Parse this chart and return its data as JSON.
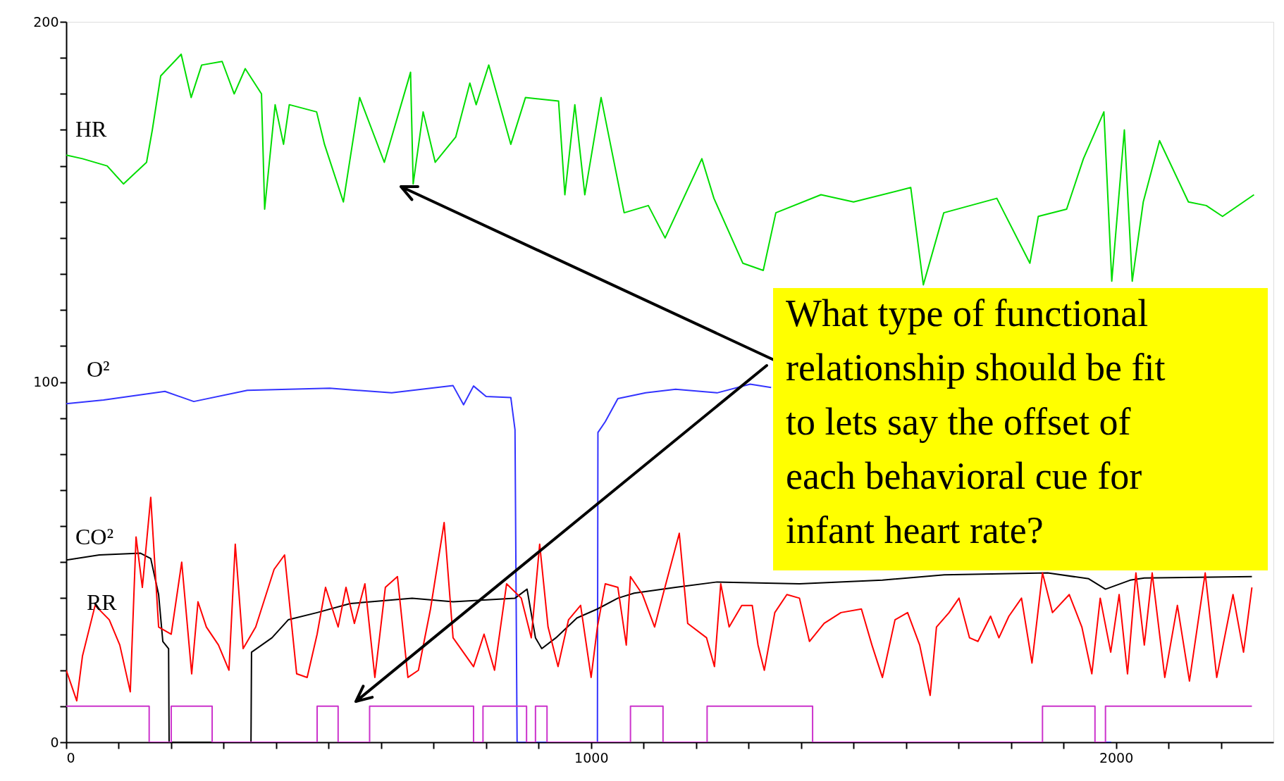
{
  "chart_data": {
    "type": "line",
    "xlim": [
      0,
      2300
    ],
    "ylim": [
      0,
      200
    ],
    "xticks": [
      0,
      {
        "value": 100,
        "label": null
      },
      {
        "value": 200,
        "label": null
      },
      {
        "value": 300,
        "label": null
      },
      {
        "value": 400,
        "label": null
      },
      {
        "value": 500,
        "label": null
      },
      {
        "value": 600,
        "label": null
      },
      {
        "value": 700,
        "label": null
      },
      {
        "value": 800,
        "label": null
      },
      {
        "value": 900,
        "label": null
      },
      1000,
      {
        "value": 1100,
        "label": null
      },
      {
        "value": 1200,
        "label": null
      },
      {
        "value": 1300,
        "label": null
      },
      {
        "value": 1400,
        "label": null
      },
      {
        "value": 1500,
        "label": null
      },
      {
        "value": 1600,
        "label": null
      },
      {
        "value": 1700,
        "label": null
      },
      {
        "value": 1800,
        "label": null
      },
      {
        "value": 1900,
        "label": null
      },
      2000,
      {
        "value": 2100,
        "label": null
      },
      {
        "value": 2200,
        "label": null
      }
    ],
    "yticks": [
      0,
      {
        "value": 10,
        "label": null
      },
      {
        "value": 20,
        "label": null
      },
      {
        "value": 30,
        "label": null
      },
      {
        "value": 40,
        "label": null
      },
      {
        "value": 50,
        "label": null
      },
      {
        "value": 60,
        "label": null
      },
      {
        "value": 70,
        "label": null
      },
      {
        "value": 80,
        "label": null
      },
      {
        "value": 90,
        "label": null
      },
      100,
      {
        "value": 110,
        "label": null
      },
      {
        "value": 120,
        "label": null
      },
      {
        "value": 130,
        "label": null
      },
      {
        "value": 140,
        "label": null
      },
      {
        "value": 150,
        "label": null
      },
      {
        "value": 160,
        "label": null
      },
      {
        "value": 170,
        "label": null
      },
      {
        "value": 180,
        "label": null
      },
      {
        "value": 190,
        "label": null
      },
      200
    ],
    "grid": false,
    "annotations": [
      "What type of functional relationship should be fit to lets say the offset of each behavioral cue for infant heart rate?"
    ],
    "series": [
      {
        "name": "HR",
        "color": "#00dd00",
        "x": [
          0,
          31,
          78,
          109,
          153,
          164,
          180,
          219,
          238,
          258,
          297,
          320,
          341,
          372,
          378,
          398,
          414,
          425,
          477,
          492,
          528,
          559,
          606,
          656,
          661,
          680,
          703,
          742,
          769,
          781,
          805,
          847,
          875,
          938,
          950,
          969,
          988,
          1019,
          1063,
          1109,
          1141,
          1211,
          1234,
          1289,
          1328,
          1352,
          1438,
          1500,
          1609,
          1633,
          1672,
          1773,
          1836,
          1852,
          1906,
          1938,
          1977,
          1992,
          2016,
          2031,
          2052,
          2083,
          2138,
          2172,
          2203,
          2263
        ],
        "values": [
          163,
          162,
          160,
          155,
          161,
          170,
          185,
          191,
          179,
          188,
          189,
          180,
          187,
          180,
          148,
          177,
          166,
          177,
          175,
          166,
          150,
          179,
          161,
          186,
          155,
          175,
          161,
          168,
          183,
          177,
          188,
          166,
          179,
          178,
          152,
          177,
          152,
          179,
          147,
          149,
          140,
          162,
          151,
          133,
          131,
          147,
          152,
          150,
          154,
          127,
          147,
          151,
          133,
          146,
          148,
          162,
          175,
          128,
          170,
          128,
          150,
          167,
          150,
          149,
          146,
          152
        ]
      },
      {
        "name": "O²",
        "color": "#3333ff",
        "x": [
          0,
          71,
          188,
          243,
          345,
          502,
          620,
          737,
          757,
          776,
          800,
          847,
          855,
          859,
          1012,
          1013,
          1027,
          1051,
          1104,
          1161,
          1240,
          1303,
          1343,
          1400,
          1965,
          1966,
          1991
        ],
        "values": [
          94,
          95,
          97.4,
          94.6,
          97.7,
          98.3,
          97,
          99,
          93.7,
          98.9,
          96,
          95.7,
          86.8,
          0,
          0,
          86,
          89,
          95.4,
          97,
          98,
          97,
          99.4,
          98.5,
          null,
          null,
          0,
          0
        ]
      },
      {
        "name": "CO²",
        "color": "#000000",
        "x": [
          0,
          63,
          141,
          161,
          176,
          184,
          195,
          196,
          352,
          353,
          392,
          423,
          478,
          541,
          580,
          659,
          737,
          855,
          878,
          894,
          906,
          933,
          973,
          1012,
          1051,
          1082,
          1161,
          1240,
          1397,
          1555,
          1673,
          1870,
          1948,
          1980,
          2027,
          2054,
          2259
        ],
        "values": [
          50.6,
          52,
          52.5,
          51,
          41,
          28,
          26,
          0,
          0,
          25,
          29,
          34,
          36,
          38.5,
          39,
          40,
          39,
          40,
          42.5,
          29,
          26,
          29,
          34.5,
          37,
          40,
          41.4,
          43,
          44.5,
          44,
          45,
          46.5,
          47,
          45.4,
          42.5,
          45,
          45.6,
          46
        ]
      },
      {
        "name": "RR",
        "color": "#ff0000",
        "x": [
          0,
          20,
          31,
          55,
          82,
          102,
          122,
          133,
          145,
          161,
          176,
          200,
          220,
          239,
          251,
          267,
          290,
          310,
          322,
          337,
          361,
          396,
          416,
          439,
          459,
          478,
          494,
          518,
          533,
          549,
          569,
          588,
          608,
          631,
          651,
          671,
          694,
          720,
          737,
          776,
          796,
          816,
          839,
          867,
          886,
          902,
          918,
          937,
          957,
          980,
          1000,
          1012,
          1027,
          1051,
          1067,
          1075,
          1098,
          1121,
          1137,
          1168,
          1184,
          1220,
          1235,
          1247,
          1263,
          1287,
          1307,
          1318,
          1330,
          1350,
          1373,
          1397,
          1416,
          1444,
          1476,
          1515,
          1535,
          1555,
          1579,
          1603,
          1626,
          1646,
          1658,
          1682,
          1701,
          1721,
          1737,
          1761,
          1777,
          1796,
          1820,
          1840,
          1860,
          1879,
          1911,
          1935,
          1954,
          1970,
          1990,
          2006,
          2022,
          2038,
          2054,
          2069,
          2093,
          2117,
          2140,
          2170,
          2192,
          2223,
          2243,
          2259
        ],
        "values": [
          20,
          11.5,
          24,
          38,
          34,
          27,
          14,
          57,
          43,
          68,
          32,
          30,
          50,
          19,
          39,
          32,
          27,
          20,
          55,
          26,
          32,
          48,
          52,
          19,
          18,
          30,
          43,
          32,
          43,
          33,
          44,
          18,
          43,
          46,
          18,
          20,
          37,
          61,
          29,
          21,
          30,
          20,
          44,
          40,
          29,
          55,
          32,
          21,
          34,
          38,
          18,
          32,
          44,
          43,
          27,
          46,
          41,
          32,
          41,
          58,
          33,
          29,
          21,
          44,
          32,
          38,
          38,
          27,
          20,
          36,
          41,
          40,
          28,
          33,
          36,
          37,
          27,
          18,
          34,
          36,
          27,
          13,
          32,
          36,
          40,
          29,
          28,
          35,
          29,
          35,
          40,
          22,
          47,
          36,
          41,
          32,
          19,
          40,
          25,
          41,
          19,
          47,
          27,
          47,
          18,
          38,
          17,
          47,
          18,
          41,
          25,
          43
        ]
      },
      {
        "type": "step",
        "color": "#cc33cc",
        "x": [
          0,
          158,
          200,
          278,
          478,
          518,
          578,
          776,
          794,
          877,
          894,
          916,
          1075,
          1137,
          1221,
          1422,
          1860,
          1960,
          1980,
          2259
        ],
        "values": [
          10,
          0,
          10,
          0,
          10,
          0,
          10,
          0,
          10,
          0,
          10,
          0,
          10,
          0,
          10,
          0,
          10,
          0,
          10,
          10
        ]
      }
    ]
  }
}
